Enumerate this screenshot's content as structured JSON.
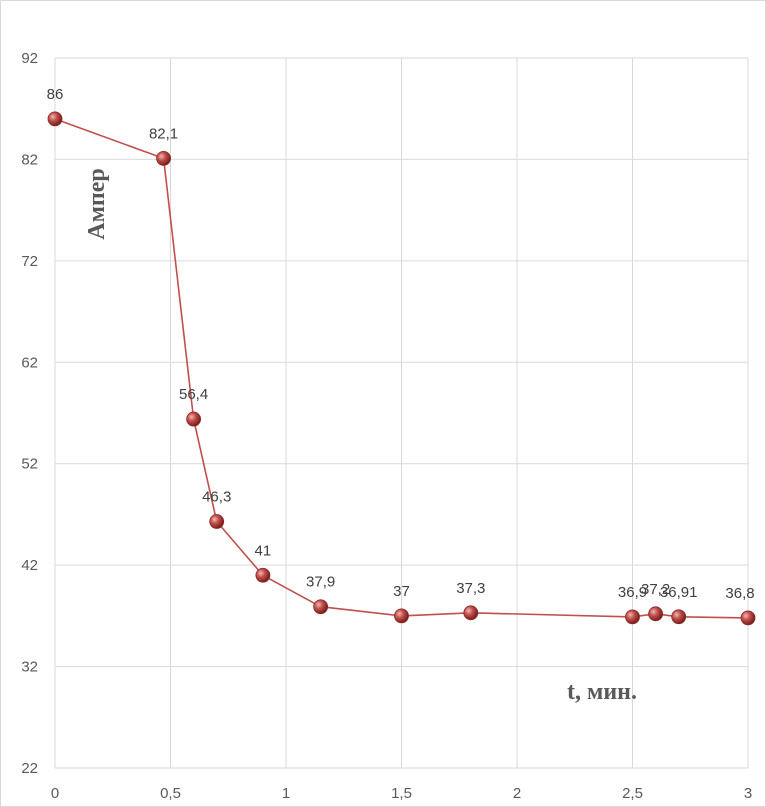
{
  "chart_data": {
    "type": "line",
    "title": "",
    "xlabel": "t, мин.",
    "ylabel": "Ампер",
    "xlim": [
      0,
      3
    ],
    "ylim": [
      22,
      92
    ],
    "xticks": [
      0,
      0.5,
      1,
      1.5,
      2,
      2.5,
      3
    ],
    "xtick_labels": [
      "0",
      "0,5",
      "1",
      "1,5",
      "2",
      "2,5",
      "3"
    ],
    "yticks": [
      22,
      32,
      42,
      52,
      62,
      72,
      82,
      92
    ],
    "ytick_labels": [
      "22",
      "32",
      "42",
      "52",
      "62",
      "72",
      "82",
      "92"
    ],
    "grid": true,
    "line_color": "#C0504D",
    "marker_color": "#C0504D",
    "grid_color": "#D9D9D9",
    "series": [
      {
        "name": "Ампер",
        "x": [
          0,
          0.47,
          0.6,
          0.7,
          0.9,
          1.15,
          1.5,
          1.8,
          2.5,
          2.6,
          2.7,
          3
        ],
        "values": [
          86,
          82.1,
          56.4,
          46.3,
          41,
          37.9,
          37,
          37.3,
          36.9,
          37.2,
          36.91,
          36.8
        ],
        "labels": [
          "86",
          "82,1",
          "56,4",
          "46,3",
          "41",
          "37,9",
          "37",
          "37,3",
          "36,9",
          "37,2",
          "36,91",
          "36,8"
        ]
      }
    ]
  }
}
